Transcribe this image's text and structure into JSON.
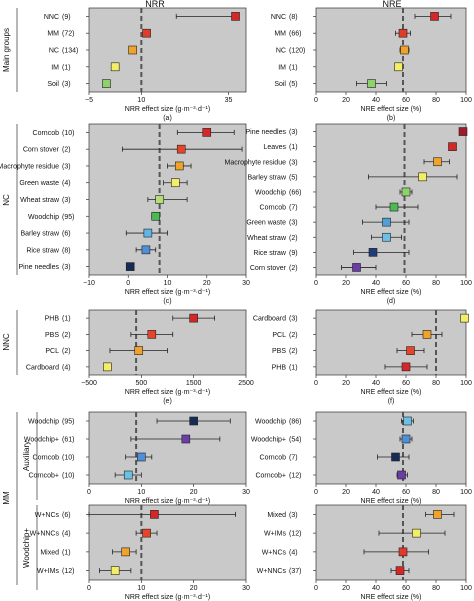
{
  "column_titles": [
    "NRR",
    "NRE"
  ],
  "row_groups": [
    {
      "label": "Main groups"
    },
    {
      "label": "NC"
    },
    {
      "label": "NNC"
    },
    {
      "label": "MM",
      "subgroups": [
        "Auxiliary",
        "Woodchip+"
      ]
    }
  ],
  "chart_data": [
    {
      "type": "scatter",
      "id": "a",
      "panel_label": "(a)",
      "xlabel": "NRR effect size (g·m⁻³·d⁻¹)",
      "xlim": [
        -5,
        40
      ],
      "xticks": [
        {
          "v": -5,
          "label": "−5"
        },
        {
          "v": 10,
          "label": "10"
        },
        {
          "v": 35,
          "label": "35"
        }
      ],
      "ref_line": 10,
      "row_group": "Main groups",
      "points": [
        {
          "label": "NNC",
          "n": "(9)",
          "value": 37,
          "ci": [
            20,
            37.5
          ],
          "color": "#d62728"
        },
        {
          "label": "MM",
          "n": "(72)",
          "value": 11.5,
          "ci": [
            10.5,
            12.5
          ],
          "color": "#e03b2b"
        },
        {
          "label": "NC",
          "n": "(134)",
          "value": 7.5,
          "ci": [
            6.8,
            8.3
          ],
          "color": "#f0a22a"
        },
        {
          "label": "IM",
          "n": "(1)",
          "value": 2.5,
          "ci": null,
          "color": "#f4ee66"
        },
        {
          "label": "Soil",
          "n": "(3)",
          "value": 0,
          "ci": [
            -1,
            1
          ],
          "color": "#8fd16a"
        }
      ]
    },
    {
      "type": "scatter",
      "id": "b",
      "panel_label": "(b)",
      "xlabel": "NRE effect size (%)",
      "xlim": [
        0,
        100
      ],
      "xticks": [
        {
          "v": 0,
          "label": "0"
        },
        {
          "v": 20,
          "label": "20"
        },
        {
          "v": 40,
          "label": "40"
        },
        {
          "v": 60,
          "label": "60"
        },
        {
          "v": 80,
          "label": "80"
        },
        {
          "v": 100,
          "label": "100"
        }
      ],
      "ref_line": 58,
      "row_group": "Main groups",
      "points": [
        {
          "label": "NNC",
          "n": "(8)",
          "value": 79,
          "ci": [
            66,
            90
          ],
          "color": "#d62728"
        },
        {
          "label": "MM",
          "n": "(66)",
          "value": 58,
          "ci": [
            53,
            63
          ],
          "color": "#e03b2b"
        },
        {
          "label": "NC",
          "n": "(120)",
          "value": 59,
          "ci": [
            56,
            62
          ],
          "color": "#f0a22a"
        },
        {
          "label": "IM",
          "n": "(1)",
          "value": 55,
          "ci": null,
          "color": "#f4ee66"
        },
        {
          "label": "Soil",
          "n": "(5)",
          "value": 37,
          "ci": [
            27,
            47
          ],
          "color": "#8fd16a"
        }
      ]
    },
    {
      "type": "scatter",
      "id": "c",
      "panel_label": "(c)",
      "xlabel": "NRR effect size (g·m⁻³·d⁻¹)",
      "xlim": [
        -10,
        30
      ],
      "xticks": [
        {
          "v": -10,
          "label": "−10"
        },
        {
          "v": 0,
          "label": "0"
        },
        {
          "v": 10,
          "label": "10"
        },
        {
          "v": 20,
          "label": "20"
        },
        {
          "v": 30,
          "label": "30"
        }
      ],
      "ref_line": 8,
      "row_group": "NC",
      "points": [
        {
          "label": "Corncob",
          "n": "(10)",
          "value": 20,
          "ci": [
            12.5,
            27
          ],
          "color": "#d62728"
        },
        {
          "label": "Corn stover",
          "n": "(2)",
          "value": 13.5,
          "ci": [
            -1.5,
            29
          ],
          "color": "#e8442a"
        },
        {
          "label": "Macrophyte residue",
          "n": "(3)",
          "value": 13,
          "ci": [
            10,
            16
          ],
          "color": "#f0a22a"
        },
        {
          "label": "Green waste",
          "n": "(4)",
          "value": 12,
          "ci": [
            9,
            15
          ],
          "color": "#f4ee66"
        },
        {
          "label": "Wheat straw",
          "n": "(3)",
          "value": 8,
          "ci": [
            5,
            15
          ],
          "color": "#b5de78"
        },
        {
          "label": "Woodchip",
          "n": "(95)",
          "value": 7,
          "ci": [
            6,
            8
          ],
          "color": "#4cb954"
        },
        {
          "label": "Barley straw",
          "n": "(6)",
          "value": 5,
          "ci": [
            -0.5,
            10
          ],
          "color": "#5fb5e4"
        },
        {
          "label": "Rice straw",
          "n": "(8)",
          "value": 4.5,
          "ci": [
            2,
            7
          ],
          "color": "#4f8fd8"
        },
        {
          "label": "Pine needles",
          "n": "(3)",
          "value": 0.5,
          "ci": null,
          "color": "#162b55"
        }
      ]
    },
    {
      "type": "scatter",
      "id": "d",
      "panel_label": "(d)",
      "xlabel": "NRE effect size (%)",
      "xlim": [
        0,
        100
      ],
      "xticks": [
        {
          "v": 0,
          "label": "0"
        },
        {
          "v": 20,
          "label": "20"
        },
        {
          "v": 40,
          "label": "40"
        },
        {
          "v": 60,
          "label": "60"
        },
        {
          "v": 80,
          "label": "80"
        },
        {
          "v": 100,
          "label": "100"
        }
      ],
      "ref_line": 59,
      "row_group": "NC",
      "points": [
        {
          "label": "Pine needles",
          "n": "(3)",
          "value": 98,
          "ci": null,
          "color": "#a01c2c"
        },
        {
          "label": "Leaves",
          "n": "(1)",
          "value": 91,
          "ci": null,
          "color": "#d62728"
        },
        {
          "label": "Macrophyte residue",
          "n": "(3)",
          "value": 81,
          "ci": [
            72,
            89
          ],
          "color": "#f0a22a"
        },
        {
          "label": "Barley straw",
          "n": "(5)",
          "value": 71,
          "ci": [
            35,
            94
          ],
          "color": "#f4ee66"
        },
        {
          "label": "Woodchip",
          "n": "(66)",
          "value": 60,
          "ci": [
            56,
            64
          ],
          "color": "#8fd16a"
        },
        {
          "label": "Corncob",
          "n": "(7)",
          "value": 52,
          "ci": [
            40,
            68
          ],
          "color": "#4cb954"
        },
        {
          "label": "Green waste",
          "n": "(3)",
          "value": 47,
          "ci": [
            31,
            62
          ],
          "color": "#4fa0d8"
        },
        {
          "label": "Wheat straw",
          "n": "(2)",
          "value": 47,
          "ci": [
            37,
            57
          ],
          "color": "#6cc0e4"
        },
        {
          "label": "Rice straw",
          "n": "(9)",
          "value": 38,
          "ci": [
            25,
            62
          ],
          "color": "#1f3d7a"
        },
        {
          "label": "Corn stover",
          "n": "(2)",
          "value": 27,
          "ci": [
            17,
            40
          ],
          "color": "#6a3da8"
        }
      ]
    },
    {
      "type": "scatter",
      "id": "e",
      "panel_label": "(e)",
      "xlabel": "NRR effect size (g·m⁻³·d⁻¹)",
      "xlim": [
        -500,
        2500
      ],
      "xticks": [
        {
          "v": -500,
          "label": "−500"
        },
        {
          "v": 500,
          "label": "500"
        },
        {
          "v": 1500,
          "label": "1500"
        },
        {
          "v": 2500,
          "label": "2500"
        }
      ],
      "ref_line": 400,
      "row_group": "NNC",
      "points": [
        {
          "label": "PHB",
          "n": "(1)",
          "value": 1500,
          "ci": [
            1100,
            1900
          ],
          "color": "#d62728"
        },
        {
          "label": "PBS",
          "n": "(2)",
          "value": 700,
          "ci": [
            300,
            1100
          ],
          "color": "#e8442a"
        },
        {
          "label": "PCL",
          "n": "(2)",
          "value": 450,
          "ci": [
            -100,
            1000
          ],
          "color": "#f0a22a"
        },
        {
          "label": "Cardboard",
          "n": "(4)",
          "value": -150,
          "ci": null,
          "color": "#f4ee66"
        }
      ]
    },
    {
      "type": "scatter",
      "id": "f",
      "panel_label": "(f)",
      "xlabel": "NRE effect size (%)",
      "xlim": [
        0,
        100
      ],
      "xticks": [
        {
          "v": 0,
          "label": "0"
        },
        {
          "v": 20,
          "label": "20"
        },
        {
          "v": 40,
          "label": "40"
        },
        {
          "v": 60,
          "label": "60"
        },
        {
          "v": 80,
          "label": "80"
        },
        {
          "v": 100,
          "label": "100"
        }
      ],
      "ref_line": 80,
      "row_group": "NNC",
      "points": [
        {
          "label": "Cardboard",
          "n": "(3)",
          "value": 99,
          "ci": null,
          "color": "#f4ee66"
        },
        {
          "label": "PCL",
          "n": "(2)",
          "value": 74,
          "ci": [
            64,
            84
          ],
          "color": "#f0a22a"
        },
        {
          "label": "PBS",
          "n": "(2)",
          "value": 63,
          "ci": [
            54,
            72
          ],
          "color": "#e8442a"
        },
        {
          "label": "PHB",
          "n": "(1)",
          "value": 60,
          "ci": [
            46,
            74
          ],
          "color": "#d62728"
        }
      ]
    },
    {
      "type": "scatter",
      "id": "g",
      "panel_label": "(g)",
      "xlabel": "NRR effect size (g·m⁻³·d⁻¹)",
      "xlim": [
        0,
        30
      ],
      "xticks": [
        {
          "v": 0,
          "label": "0"
        },
        {
          "v": 10,
          "label": "10"
        },
        {
          "v": 20,
          "label": "20"
        },
        {
          "v": 30,
          "label": "30"
        }
      ],
      "ref_line": 9,
      "row_group": "MM",
      "subgroup": "Auxiliary",
      "points": [
        {
          "label": "Woodchip",
          "n": "(95)",
          "value": 20,
          "ci": [
            13,
            27
          ],
          "color": "#162b55"
        },
        {
          "label": "Woodchip+",
          "n": "(61)",
          "value": 18.5,
          "ci": [
            8,
            25
          ],
          "color": "#6a3da8"
        },
        {
          "label": "Corncob",
          "n": "(10)",
          "value": 10,
          "ci": [
            7,
            12
          ],
          "color": "#4f8fd8"
        },
        {
          "label": "Corncob+",
          "n": "(10)",
          "value": 7.5,
          "ci": [
            5,
            10
          ],
          "color": "#6cc0e4"
        }
      ]
    },
    {
      "type": "scatter",
      "id": "h",
      "panel_label": "(h)",
      "xlabel": "NRE effect size (%)",
      "xlim": [
        0,
        100
      ],
      "xticks": [
        {
          "v": 0,
          "label": "0"
        },
        {
          "v": 20,
          "label": "20"
        },
        {
          "v": 40,
          "label": "40"
        },
        {
          "v": 60,
          "label": "60"
        },
        {
          "v": 80,
          "label": "80"
        },
        {
          "v": 100,
          "label": "100"
        }
      ],
      "ref_line": 58,
      "row_group": "MM",
      "subgroup": "Auxiliary",
      "points": [
        {
          "label": "Woodchip",
          "n": "(86)",
          "value": 61,
          "ci": [
            57,
            65
          ],
          "color": "#6cc0e4"
        },
        {
          "label": "Woodchip+",
          "n": "(54)",
          "value": 60,
          "ci": [
            56,
            64
          ],
          "color": "#4f8fd8"
        },
        {
          "label": "Corncob",
          "n": "(7)",
          "value": 53,
          "ci": [
            41,
            62
          ],
          "color": "#162b55"
        },
        {
          "label": "Corncob+",
          "n": "(12)",
          "value": 57,
          "ci": [
            54,
            61
          ],
          "color": "#6a3da8"
        }
      ]
    },
    {
      "type": "scatter",
      "id": "i",
      "panel_label": "(i)",
      "xlabel": "NRR effect size (g·m⁻³·d⁻¹)",
      "xlim": [
        0,
        30
      ],
      "xticks": [
        {
          "v": 0,
          "label": "0"
        },
        {
          "v": 10,
          "label": "10"
        },
        {
          "v": 20,
          "label": "20"
        },
        {
          "v": 30,
          "label": "30"
        }
      ],
      "ref_line": 10,
      "row_group": "MM",
      "subgroup": "Woodchip+",
      "points": [
        {
          "label": "W+NCs",
          "n": "(6)",
          "value": 12.5,
          "ci": [
            0,
            28
          ],
          "color": "#d62728"
        },
        {
          "label": "W+NNCs",
          "n": "(4)",
          "value": 11,
          "ci": [
            9,
            13
          ],
          "color": "#e8442a"
        },
        {
          "label": "Mixed",
          "n": "(1)",
          "value": 7,
          "ci": [
            4.5,
            9
          ],
          "color": "#f0a22a"
        },
        {
          "label": "W+IMs",
          "n": "(12)",
          "value": 5,
          "ci": [
            2,
            8
          ],
          "color": "#f4ee66"
        }
      ]
    },
    {
      "type": "scatter",
      "id": "j",
      "panel_label": "(j)",
      "xlabel": "NRE effect size (%)",
      "xlim": [
        0,
        100
      ],
      "xticks": [
        {
          "v": 0,
          "label": "0"
        },
        {
          "v": 20,
          "label": "20"
        },
        {
          "v": 40,
          "label": "40"
        },
        {
          "v": 60,
          "label": "60"
        },
        {
          "v": 80,
          "label": "80"
        },
        {
          "v": 100,
          "label": "100"
        }
      ],
      "ref_line": 58,
      "row_group": "MM",
      "subgroup": "Woodchip+",
      "points": [
        {
          "label": "Mixed",
          "n": "(3)",
          "value": 81,
          "ci": [
            73,
            92
          ],
          "color": "#f0a22a"
        },
        {
          "label": "W+IMs",
          "n": "(12)",
          "value": 67,
          "ci": [
            42,
            86
          ],
          "color": "#f4ee66"
        },
        {
          "label": "W+NCs",
          "n": "(4)",
          "value": 58,
          "ci": [
            32,
            75
          ],
          "color": "#e03b2b"
        },
        {
          "label": "W+NNCs",
          "n": "(37)",
          "value": 56,
          "ci": [
            50,
            62
          ],
          "color": "#d62728"
        }
      ]
    }
  ]
}
